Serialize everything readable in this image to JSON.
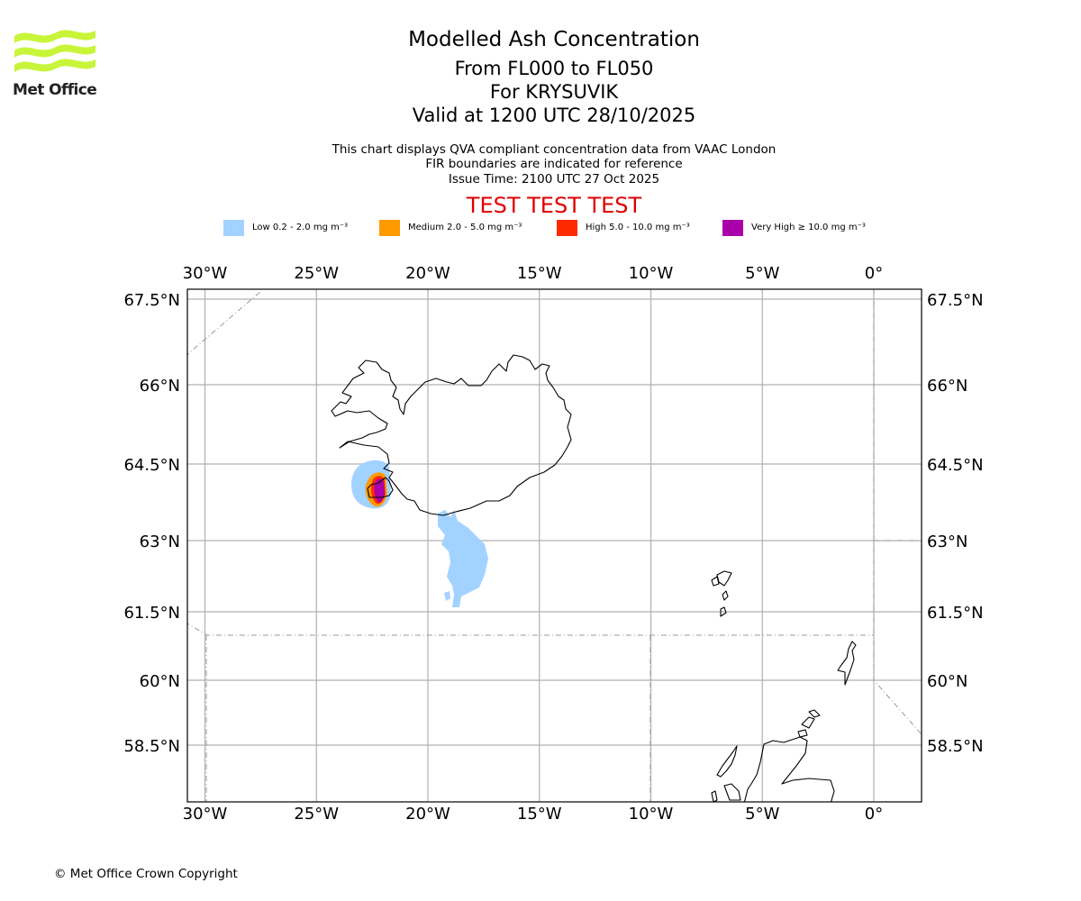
{
  "logo": {
    "text": "Met Office"
  },
  "title": {
    "main": "Modelled Ash Concentration",
    "range": "From FL000 to FL050",
    "location": "For KRYSUVIK",
    "valid": "Valid at 1200 UTC 28/10/2025"
  },
  "subtitle": {
    "line1": "This chart displays QVA compliant concentration data from VAAC London",
    "line2": "FIR boundaries are indicated for reference",
    "line3": "Issue Time: 2100 UTC 27 Oct 2025"
  },
  "banner": {
    "text": "TEST TEST TEST",
    "color": "#e00000"
  },
  "legend": [
    {
      "label": "Low 0.2 - 2.0 mg m⁻³",
      "color": "#a2d2ff"
    },
    {
      "label": "Medium 2.0 - 5.0 mg m⁻³",
      "color": "#ff9b00"
    },
    {
      "label": "High 5.0 - 10.0 mg m⁻³",
      "color": "#ff2a00"
    },
    {
      "label": "Very High  ≥  10.0 mg m⁻³",
      "color": "#aa00aa"
    }
  ],
  "map": {
    "lon_labels": [
      "30°W",
      "25°W",
      "20°W",
      "15°W",
      "10°W",
      "5°W",
      "0°"
    ],
    "lon_values": [
      -30,
      -25,
      -20,
      -15,
      -10,
      -5,
      0
    ],
    "lat_labels": [
      "67.5°N",
      "66°N",
      "64.5°N",
      "63°N",
      "61.5°N",
      "60°N",
      "58.5°N"
    ],
    "lat_values": [
      67.5,
      66,
      64.5,
      63,
      61.5,
      60,
      58.5
    ],
    "gridline_color": "#b0b0b0",
    "coast_color": "#000000",
    "fir_color": "#999999"
  },
  "copyright": "© Met Office Crown Copyright"
}
